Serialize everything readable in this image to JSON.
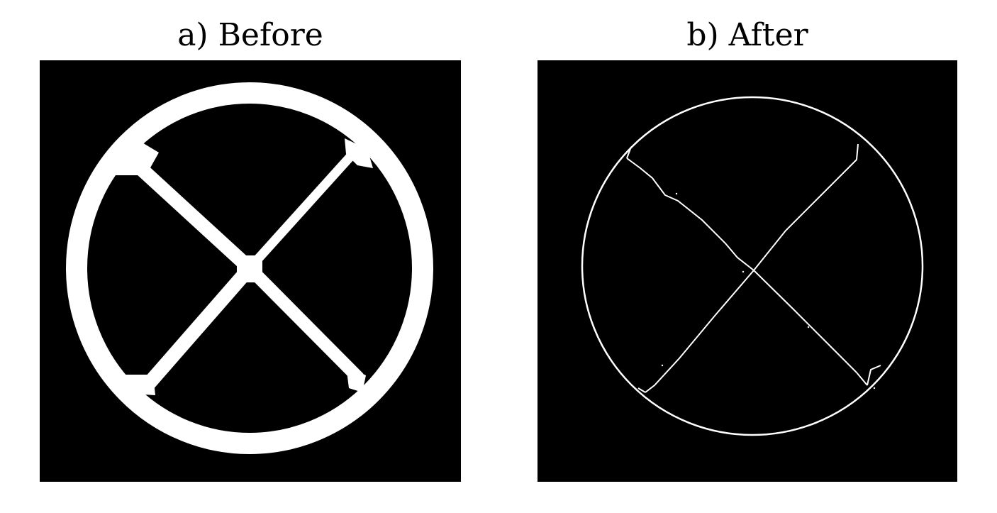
{
  "panels": {
    "before": {
      "title": "a) Before"
    },
    "after": {
      "title": "b) After"
    }
  },
  "colors": {
    "background": "#000000",
    "foreground": "#ffffff",
    "page": "#ffffff"
  }
}
